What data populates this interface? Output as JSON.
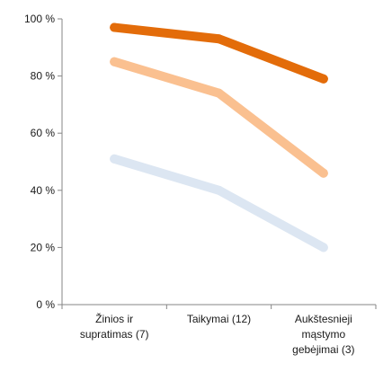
{
  "chart_data": {
    "type": "line",
    "categories": [
      [
        "Žinios ir",
        "supratimas (7)"
      ],
      [
        "Taikymai (12)"
      ],
      [
        "Aukštesnieji",
        "mąstymo",
        "gebėjimai (3)"
      ]
    ],
    "ylim": [
      0,
      100
    ],
    "yticks": [
      "0 %",
      "20 %",
      "40 %",
      "60 %",
      "80 %",
      "100 %"
    ],
    "grid": false,
    "legend": "none",
    "series": [
      {
        "values": [
          97,
          93,
          79
        ],
        "color": "#E36C0A"
      },
      {
        "values": [
          85,
          74,
          46
        ],
        "color": "#FAC090"
      },
      {
        "values": [
          51,
          40,
          20
        ],
        "color": "#DCE6F2"
      }
    ]
  }
}
